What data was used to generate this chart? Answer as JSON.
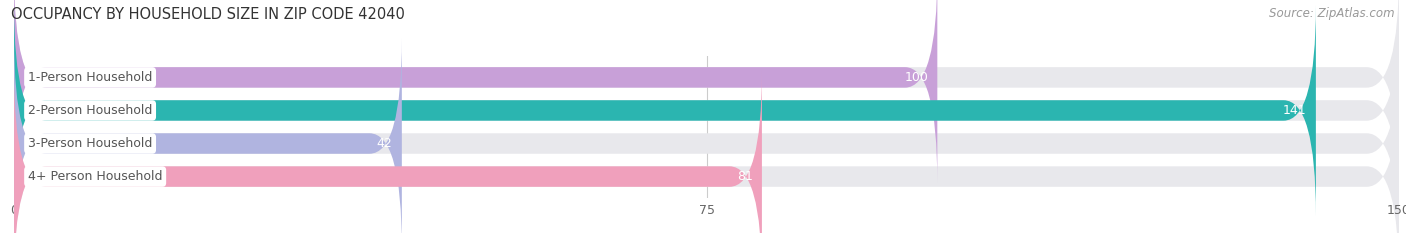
{
  "title": "OCCUPANCY BY HOUSEHOLD SIZE IN ZIP CODE 42040",
  "source": "Source: ZipAtlas.com",
  "categories": [
    "1-Person Household",
    "2-Person Household",
    "3-Person Household",
    "4+ Person Household"
  ],
  "values": [
    100,
    141,
    42,
    81
  ],
  "bar_colors": [
    "#c8a0d8",
    "#2bb5b0",
    "#b0b4e0",
    "#f0a0bc"
  ],
  "background_color": "#ffffff",
  "bar_bg_color": "#e8e8ec",
  "xlim": [
    0,
    150
  ],
  "xticks": [
    0,
    75,
    150
  ],
  "bar_height": 0.62,
  "label_color": "#ffffff",
  "title_fontsize": 10.5,
  "source_fontsize": 8.5,
  "tick_fontsize": 9,
  "category_fontsize": 9,
  "value_fontsize": 9,
  "grid_color": "#cccccc",
  "label_box_color": "#ffffff",
  "category_text_color": "#555555"
}
